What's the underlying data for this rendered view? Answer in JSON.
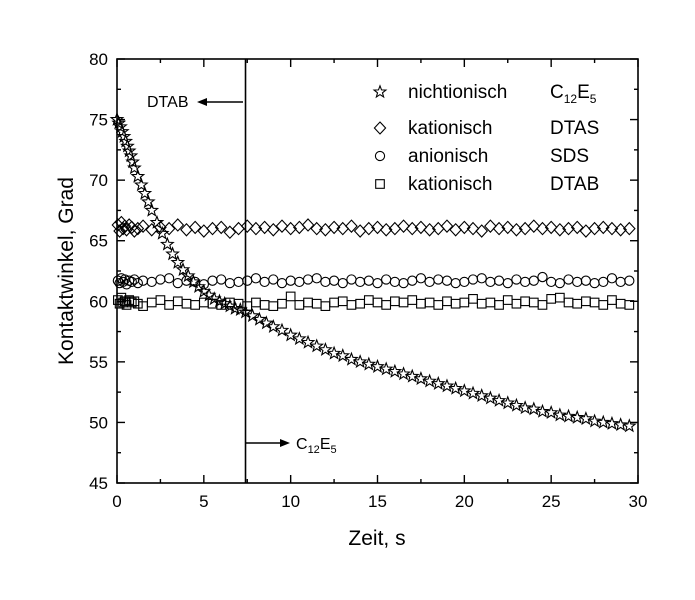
{
  "chart_data": {
    "type": "scatter",
    "xlabel": "Zeit, s",
    "ylabel": "Kontaktwinkel, Grad",
    "xlim": [
      0,
      30
    ],
    "ylim": [
      45,
      80
    ],
    "xticks": [
      "0",
      "5",
      "10",
      "15",
      "20",
      "25",
      "30"
    ],
    "yticks": [
      "45",
      "50",
      "55",
      "60",
      "65",
      "70",
      "75",
      "80"
    ],
    "grid": false,
    "legend_position": "top-right",
    "legend": [
      {
        "name": "nichtionisch",
        "formula": {
          "main": "C",
          "sub1": "12",
          "mid": "E",
          "sub2": "5"
        },
        "marker": "star"
      },
      {
        "name": "kationisch",
        "formula": {
          "main": "DTAS"
        },
        "marker": "diamond"
      },
      {
        "name": "anionisch",
        "formula": {
          "main": "SDS"
        },
        "marker": "circle"
      },
      {
        "name": "kationisch",
        "formula": {
          "main": "DTAB"
        },
        "marker": "square"
      }
    ],
    "annotations": {
      "divider_x": 7.4,
      "left_label": "DTAB",
      "right_label": {
        "main": "C",
        "sub1": "12",
        "mid": "E",
        "sub2": "5"
      }
    },
    "series": [
      {
        "name": "C12E5",
        "marker": "star",
        "x": [
          0.0,
          0.1,
          0.2,
          0.3,
          0.4,
          0.5,
          0.6,
          0.7,
          0.8,
          0.9,
          1.0,
          1.2,
          1.4,
          1.6,
          1.8,
          2.0,
          2.3,
          2.6,
          2.9,
          3.2,
          3.5,
          3.8,
          4.1,
          4.4,
          4.7,
          5.0,
          5.3,
          5.6,
          5.9,
          6.2,
          6.5,
          6.8,
          7.1,
          7.4,
          7.8,
          8.2,
          8.6,
          9.0,
          9.5,
          10.0,
          10.5,
          11.0,
          11.5,
          12.0,
          12.5,
          13.0,
          13.5,
          14.0,
          14.5,
          15.0,
          15.5,
          16.0,
          16.5,
          17.0,
          17.5,
          18.0,
          18.5,
          19.0,
          19.5,
          20.0,
          20.5,
          21.0,
          21.5,
          22.0,
          22.5,
          23.0,
          23.5,
          24.0,
          24.5,
          25.0,
          25.5,
          26.0,
          26.5,
          27.0,
          27.5,
          28.0,
          28.5,
          29.0,
          29.5
        ],
        "y": [
          75.0,
          74.7,
          74.4,
          74.0,
          73.6,
          73.2,
          72.8,
          72.4,
          72.0,
          71.5,
          71.0,
          70.3,
          69.6,
          68.9,
          68.2,
          67.5,
          66.5,
          65.6,
          64.7,
          63.9,
          63.2,
          62.6,
          62.1,
          61.6,
          61.2,
          60.8,
          60.5,
          60.2,
          60.0,
          59.8,
          59.6,
          59.4,
          59.3,
          59.1,
          58.8,
          58.5,
          58.2,
          57.9,
          57.6,
          57.2,
          56.9,
          56.6,
          56.3,
          56.0,
          55.7,
          55.5,
          55.2,
          55.0,
          54.8,
          54.6,
          54.4,
          54.2,
          54.0,
          53.8,
          53.6,
          53.4,
          53.2,
          53.0,
          52.8,
          52.6,
          52.4,
          52.2,
          52.0,
          51.8,
          51.6,
          51.4,
          51.2,
          51.1,
          50.9,
          50.8,
          50.6,
          50.5,
          50.4,
          50.3,
          50.1,
          50.0,
          49.9,
          49.8,
          49.7
        ]
      },
      {
        "name": "DTAS",
        "marker": "diamond",
        "x": [
          0.05,
          0.15,
          0.25,
          0.35,
          0.45,
          0.55,
          0.7,
          0.85,
          1.0,
          1.2,
          1.5,
          2.0,
          2.5,
          3.0,
          3.5,
          4.0,
          4.5,
          5.0,
          5.5,
          6.0,
          6.5,
          7.0,
          7.5,
          8.0,
          8.5,
          9.0,
          9.5,
          10.0,
          10.5,
          11.0,
          11.5,
          12.0,
          12.5,
          13.0,
          13.5,
          14.0,
          14.5,
          15.0,
          15.5,
          16.0,
          16.5,
          17.0,
          17.5,
          18.0,
          18.5,
          19.0,
          19.5,
          20.0,
          20.5,
          21.0,
          21.5,
          22.0,
          22.5,
          23.0,
          23.5,
          24.0,
          24.5,
          25.0,
          25.5,
          26.0,
          26.5,
          27.0,
          27.5,
          28.0,
          28.5,
          29.0,
          29.5
        ],
        "y": [
          66.3,
          65.8,
          66.5,
          66.0,
          66.2,
          65.9,
          66.3,
          66.1,
          65.8,
          66.0,
          66.2,
          65.9,
          66.1,
          66.0,
          66.3,
          65.9,
          66.1,
          65.8,
          66.0,
          66.1,
          65.7,
          66.0,
          66.2,
          66.0,
          66.1,
          65.9,
          66.2,
          66.0,
          66.1,
          66.3,
          66.0,
          65.9,
          66.1,
          66.0,
          66.2,
          65.8,
          66.0,
          66.1,
          65.9,
          66.0,
          66.2,
          66.0,
          66.1,
          65.9,
          66.0,
          66.2,
          65.9,
          66.1,
          66.0,
          65.8,
          66.2,
          66.0,
          66.1,
          65.9,
          66.0,
          66.2,
          66.0,
          66.1,
          65.9,
          66.0,
          66.1,
          65.8,
          66.0,
          66.1,
          66.0,
          65.9,
          66.0
        ]
      },
      {
        "name": "SDS",
        "marker": "circle",
        "x": [
          0.05,
          0.15,
          0.25,
          0.35,
          0.45,
          0.55,
          0.7,
          0.85,
          1.0,
          1.2,
          1.5,
          2.0,
          2.5,
          3.0,
          3.5,
          4.0,
          4.5,
          5.0,
          5.5,
          6.0,
          6.5,
          7.0,
          7.5,
          8.0,
          8.5,
          9.0,
          9.5,
          10.0,
          10.5,
          11.0,
          11.5,
          12.0,
          12.5,
          13.0,
          13.5,
          14.0,
          14.5,
          15.0,
          15.5,
          16.0,
          16.5,
          17.0,
          17.5,
          18.0,
          18.5,
          19.0,
          19.5,
          20.0,
          20.5,
          21.0,
          21.5,
          22.0,
          22.5,
          23.0,
          23.5,
          24.0,
          24.5,
          25.0,
          25.5,
          26.0,
          26.5,
          27.0,
          27.5,
          28.0,
          28.5,
          29.0,
          29.5
        ],
        "y": [
          61.7,
          61.5,
          61.9,
          61.6,
          61.8,
          61.4,
          61.7,
          61.6,
          61.8,
          61.5,
          61.7,
          61.6,
          61.8,
          61.9,
          61.5,
          61.7,
          61.6,
          61.4,
          61.7,
          61.8,
          61.5,
          61.6,
          61.7,
          61.9,
          61.6,
          61.8,
          61.5,
          61.7,
          61.6,
          61.8,
          61.9,
          61.6,
          61.7,
          61.5,
          61.8,
          61.6,
          61.7,
          61.5,
          61.8,
          61.6,
          61.5,
          61.7,
          61.9,
          61.6,
          61.8,
          61.7,
          61.5,
          61.6,
          61.8,
          61.9,
          61.6,
          61.7,
          61.5,
          61.8,
          61.6,
          61.7,
          62.0,
          61.6,
          61.5,
          61.8,
          61.6,
          61.7,
          61.5,
          61.6,
          61.9,
          61.6,
          61.7
        ]
      },
      {
        "name": "DTAB",
        "marker": "square",
        "x": [
          0.05,
          0.15,
          0.25,
          0.35,
          0.45,
          0.55,
          0.7,
          0.85,
          1.0,
          1.2,
          1.5,
          2.0,
          2.5,
          3.0,
          3.5,
          4.0,
          4.5,
          5.0,
          5.5,
          6.0,
          6.5,
          7.0,
          7.5,
          8.0,
          8.5,
          9.0,
          9.5,
          10.0,
          10.5,
          11.0,
          11.5,
          12.0,
          12.5,
          13.0,
          13.5,
          14.0,
          14.5,
          15.0,
          15.5,
          16.0,
          16.5,
          17.0,
          17.5,
          18.0,
          18.5,
          19.0,
          19.5,
          20.0,
          20.5,
          21.0,
          21.5,
          22.0,
          22.5,
          23.0,
          23.5,
          24.0,
          24.5,
          25.0,
          25.5,
          26.0,
          26.5,
          27.0,
          27.5,
          28.0,
          28.5,
          29.0,
          29.5
        ],
        "y": [
          60.1,
          59.8,
          60.3,
          59.9,
          60.0,
          59.7,
          60.1,
          59.9,
          60.0,
          59.8,
          59.6,
          59.9,
          60.1,
          59.7,
          60.0,
          59.8,
          59.7,
          59.9,
          59.8,
          59.7,
          59.9,
          59.8,
          59.6,
          59.9,
          59.7,
          59.6,
          59.8,
          60.4,
          59.7,
          59.9,
          59.8,
          59.6,
          59.9,
          60.0,
          59.7,
          59.8,
          60.1,
          59.9,
          59.7,
          60.0,
          59.9,
          60.1,
          59.8,
          59.9,
          59.7,
          60.0,
          59.8,
          59.9,
          60.2,
          59.8,
          59.9,
          59.7,
          60.1,
          59.8,
          60.0,
          59.9,
          59.7,
          60.2,
          60.3,
          59.9,
          59.8,
          60.0,
          59.9,
          59.7,
          60.1,
          59.8,
          59.7
        ]
      }
    ]
  }
}
